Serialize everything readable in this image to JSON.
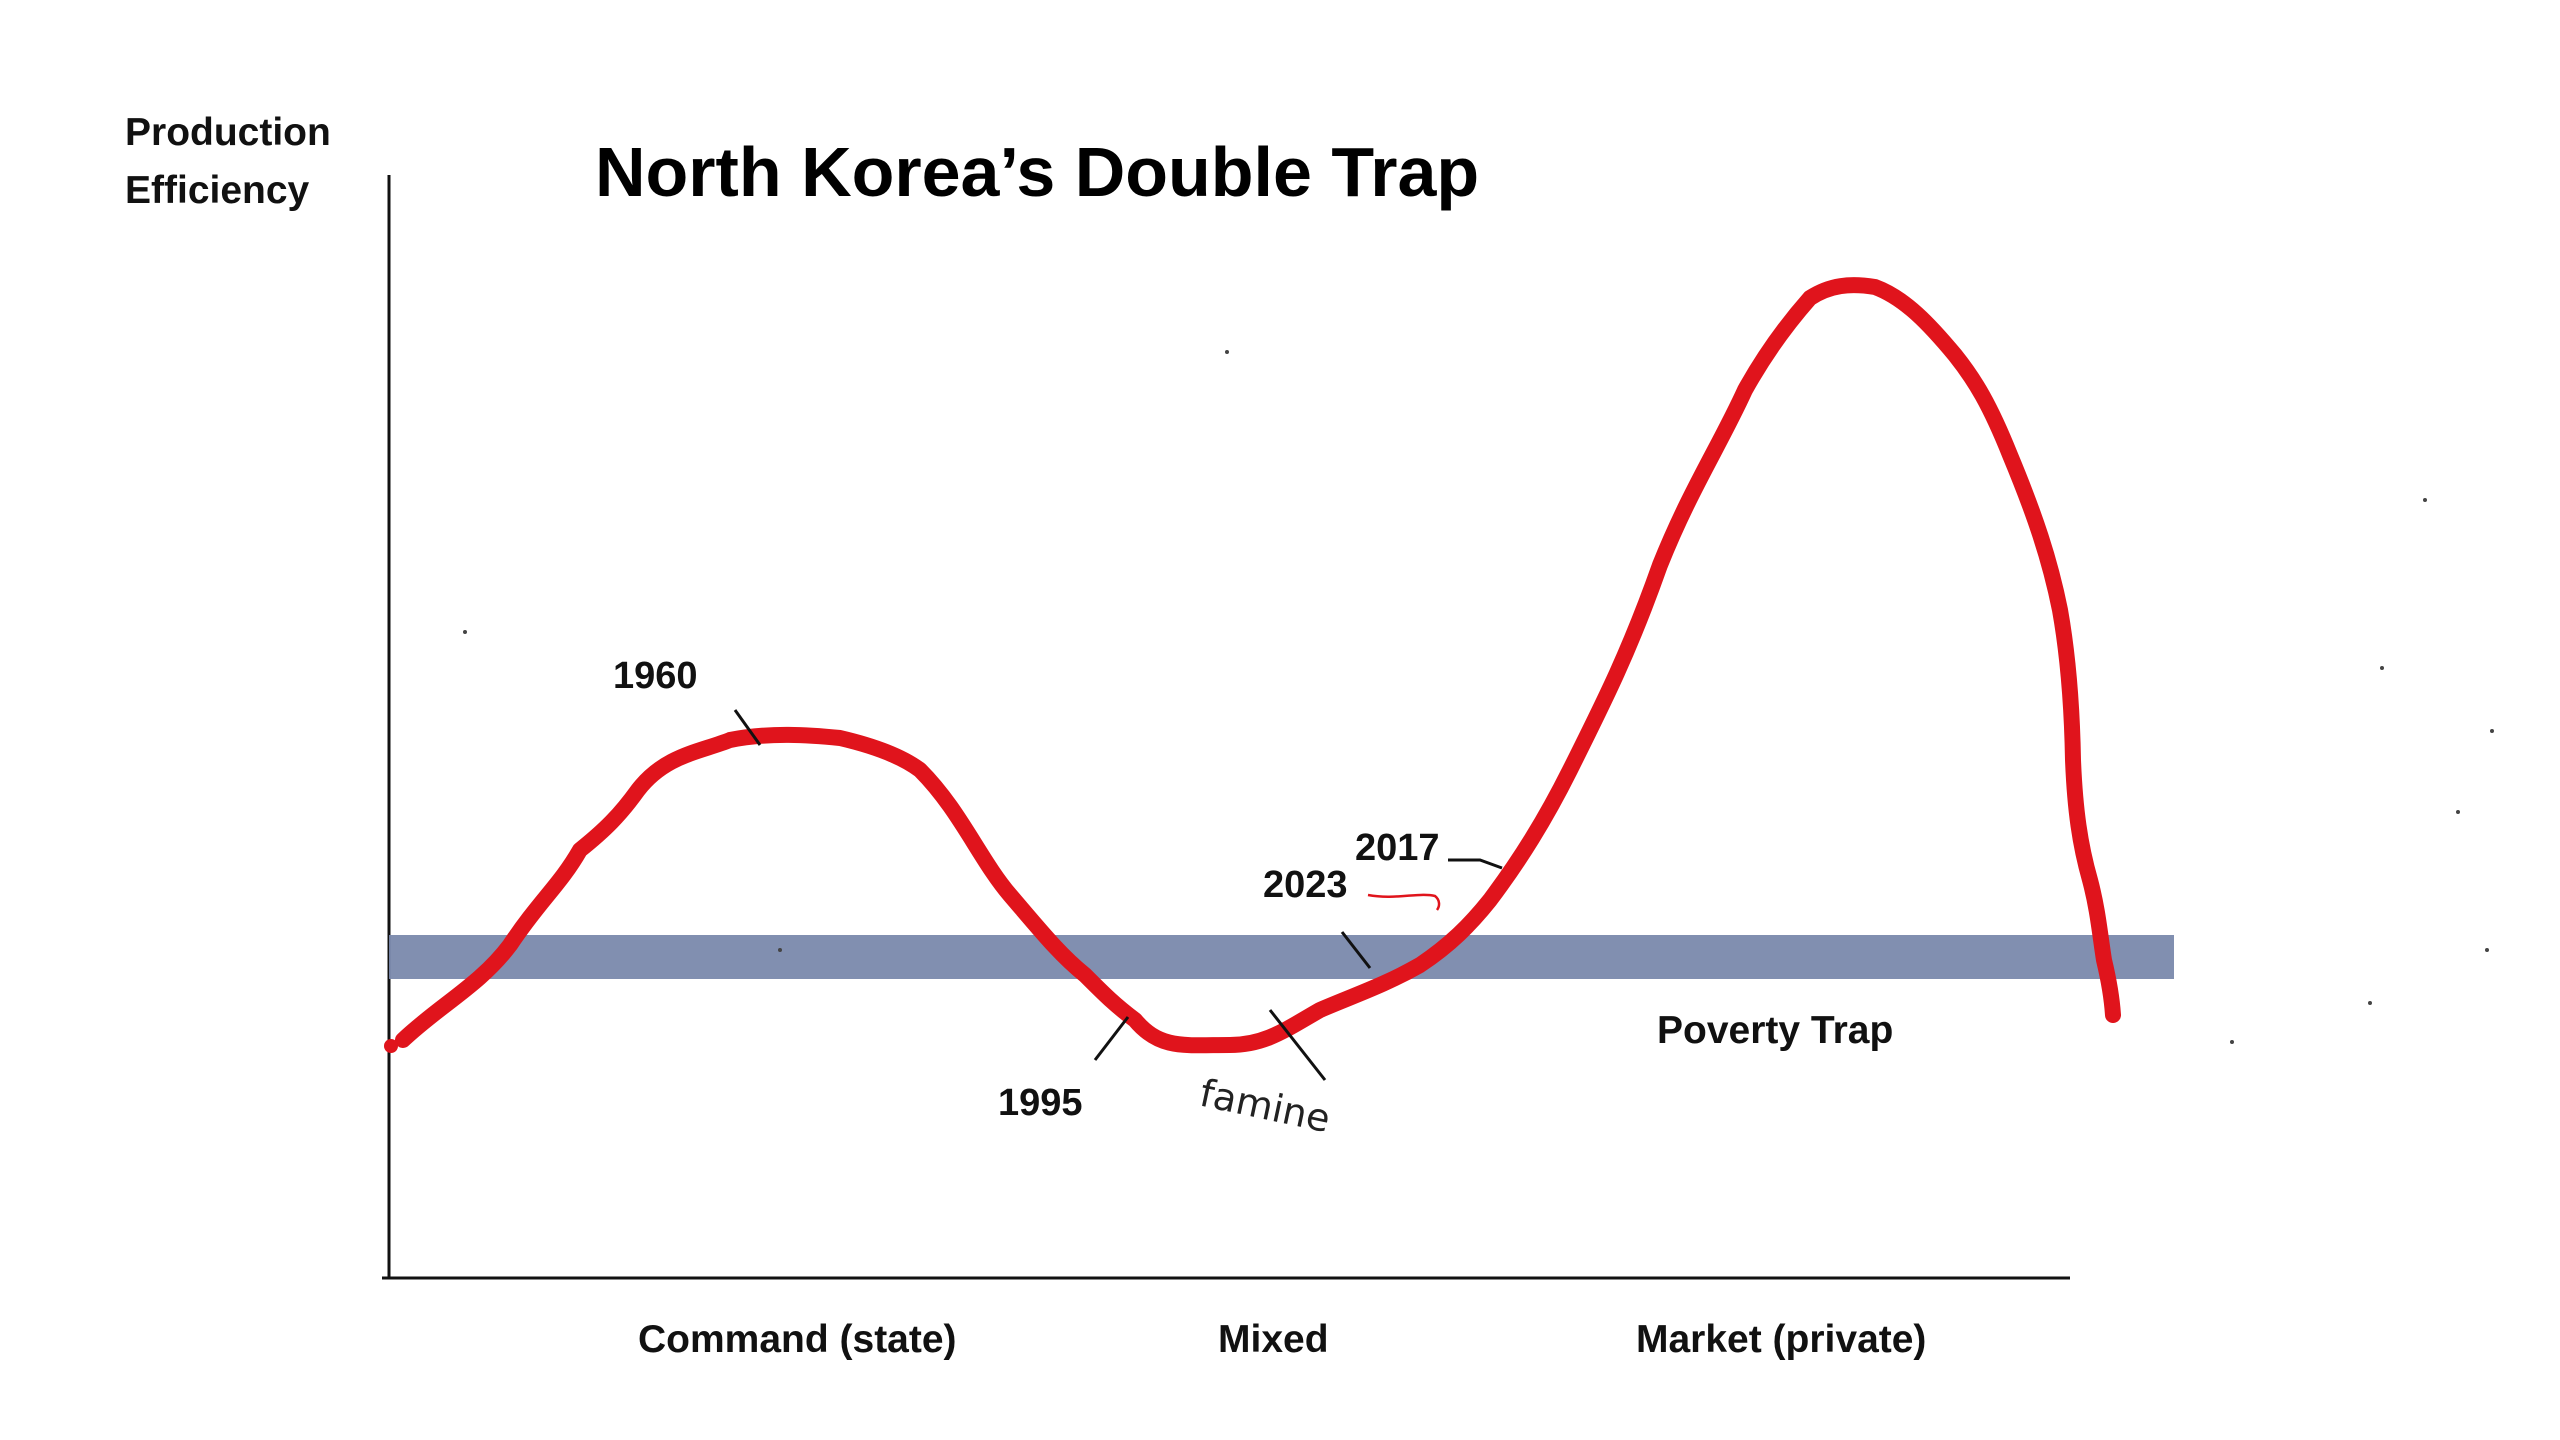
{
  "title": "North Korea’s  Double Trap",
  "y_axis_label_line1": "Production",
  "y_axis_label_line2": "Efficiency",
  "x_axis_labels": {
    "command": "Command  (state)",
    "mixed": "Mixed",
    "market": "Market  (private)"
  },
  "band_label": "Poverty Trap",
  "annotations": {
    "y1960": "1960",
    "y1995": "1995",
    "famine": "famine",
    "y2017": "2017",
    "y2023": "2023"
  },
  "colors": {
    "curve": "#e0141c",
    "band": "#7a89ac",
    "axis": "#111111",
    "annotation_2023_tick": "#e0141c"
  }
}
